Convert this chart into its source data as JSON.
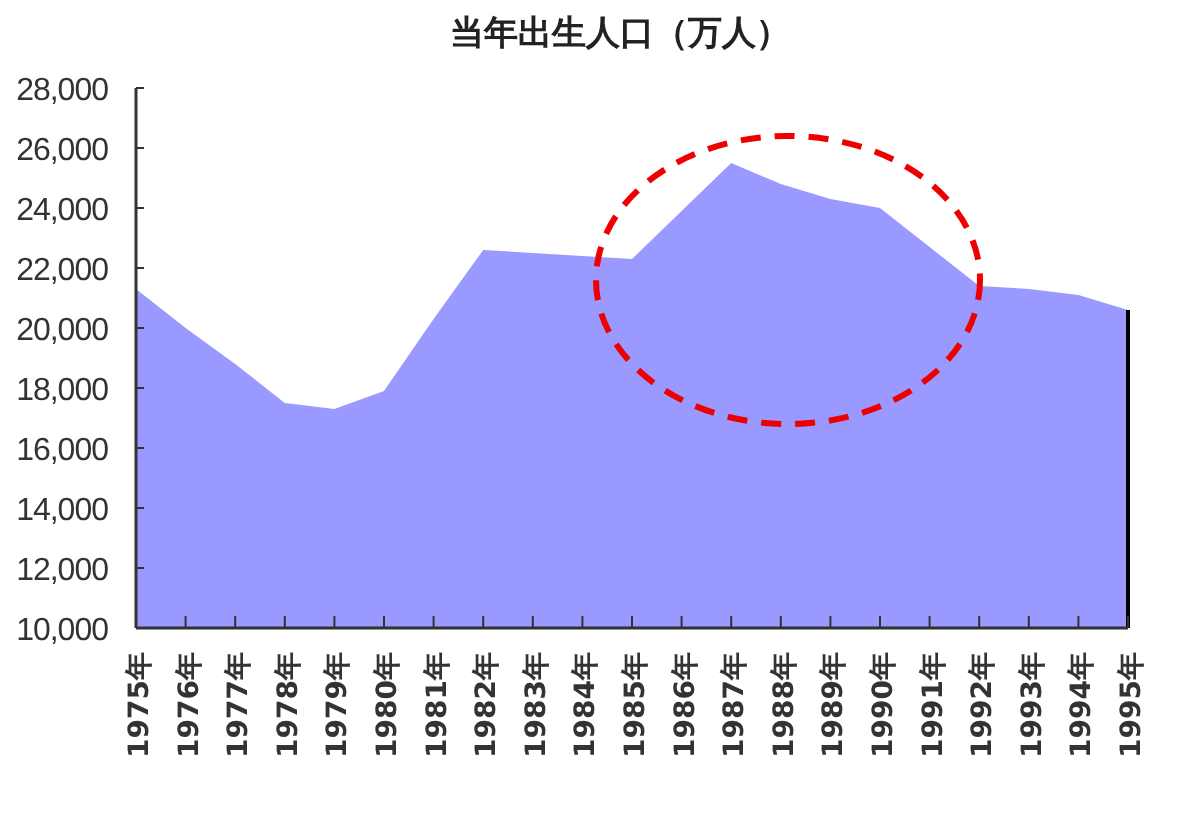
{
  "chart_data": {
    "type": "area",
    "title": "当年出生人口（万人）",
    "categories": [
      "1975年",
      "1976年",
      "1977年",
      "1978年",
      "1979年",
      "1980年",
      "1981年",
      "1982年",
      "1983年",
      "1984年",
      "1985年",
      "1986年",
      "1987年",
      "1988年",
      "1989年",
      "1990年",
      "1991年",
      "1992年",
      "1993年",
      "1994年",
      "1995年"
    ],
    "values": [
      21300,
      20000,
      18800,
      17500,
      17300,
      17900,
      20300,
      22600,
      22500,
      22400,
      22300,
      23900,
      25500,
      24800,
      24300,
      24000,
      22700,
      21400,
      21300,
      21100,
      20600
    ],
    "color": "#9999ff",
    "ylim": [
      10000,
      28000
    ],
    "yticks": [
      {
        "value": 10000,
        "label": "10,000"
      },
      {
        "value": 12000,
        "label": "12,000"
      },
      {
        "value": 14000,
        "label": "14,000"
      },
      {
        "value": 16000,
        "label": "16,000"
      },
      {
        "value": 18000,
        "label": "18,000"
      },
      {
        "value": 20000,
        "label": "20,000"
      },
      {
        "value": 22000,
        "label": "22,000"
      },
      {
        "value": 24000,
        "label": "24,000"
      },
      {
        "value": 26000,
        "label": "26,000"
      },
      {
        "value": 28000,
        "label": "28,000"
      }
    ]
  }
}
